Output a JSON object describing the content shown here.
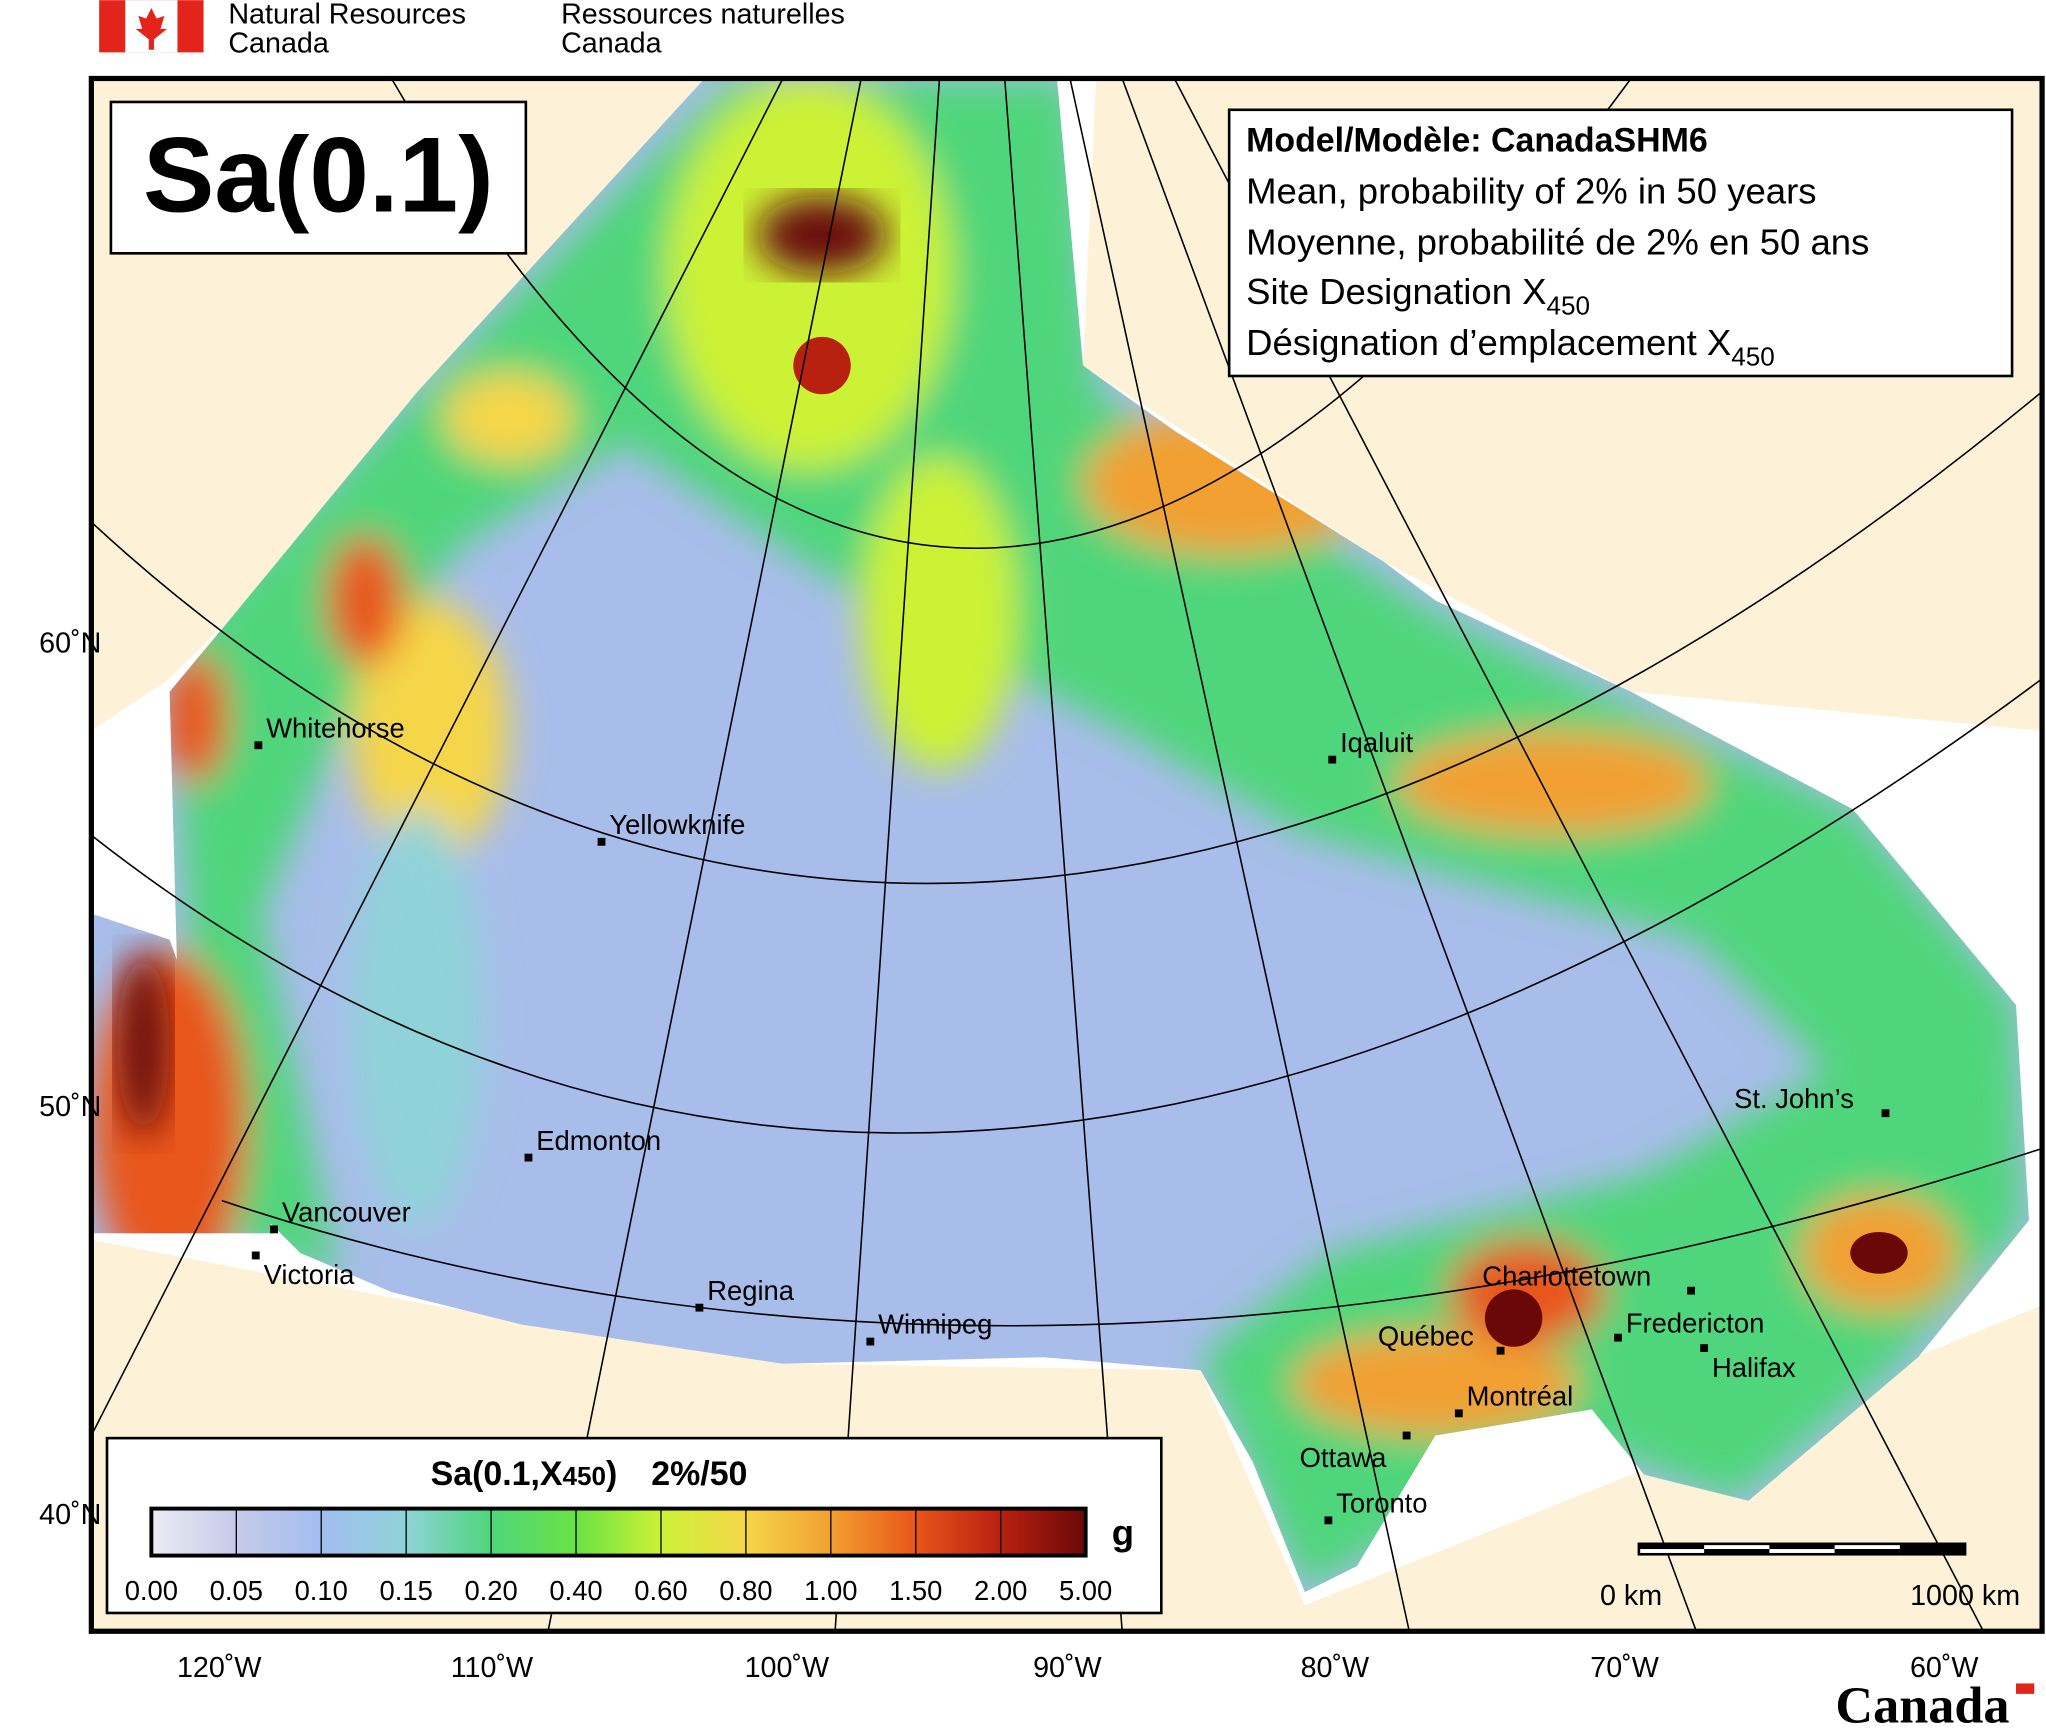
{
  "header": {
    "department_en": [
      "Natural Resources",
      "Canada"
    ],
    "department_fr": [
      "Ressources naturelles",
      "Canada"
    ]
  },
  "map": {
    "title": "Sa(0.1)",
    "info": {
      "model": "Model/Modèle: CanadaSHM6",
      "lines": [
        "Mean, probability of 2% in 50 years",
        "Moyenne, probabilité de 2% en 50 ans"
      ],
      "site_lines": [
        {
          "text": "Site Designation X",
          "subscript": "450"
        },
        {
          "text": "Désignation d’emplacement X",
          "subscript": "450"
        }
      ]
    },
    "cities": [
      "Whitehorse",
      "Yellowknife",
      "Iqaluit",
      "Edmonton",
      "Vancouver",
      "Victoria",
      "Regina",
      "Winnipeg",
      "St. John’s",
      "Charlottetown",
      "Québec",
      "Fredericton",
      "Halifax",
      "Montréal",
      "Ottawa",
      "Toronto"
    ],
    "latitude_labels": [
      "60˚N",
      "50˚N",
      "40˚N"
    ],
    "longitude_labels": [
      "120˚W",
      "110˚W",
      "100˚W",
      "90˚W",
      "80˚W",
      "70˚W",
      "60˚W"
    ],
    "scale_bar": [
      "0 km",
      "1000 km"
    ]
  },
  "legend": {
    "title": {
      "prefix": "Sa(0.1,X",
      "small": "450",
      "suffix": ")",
      "period": "2%/50"
    },
    "unit": "g",
    "ticks": [
      "0.00",
      "0.05",
      "0.10",
      "0.15",
      "0.20",
      "0.40",
      "0.60",
      "0.80",
      "1.00",
      "1.50",
      "2.00",
      "5.00"
    ],
    "colors": [
      "#ecebf5",
      "#c5cbe8",
      "#a3bdf0",
      "#8fd3d8",
      "#4fd67c",
      "#6ae244",
      "#ccf236",
      "#f5d64a",
      "#f2a030",
      "#e8561a",
      "#b82010",
      "#6a0808"
    ]
  },
  "footer": {
    "wordmark": "Canada"
  }
}
